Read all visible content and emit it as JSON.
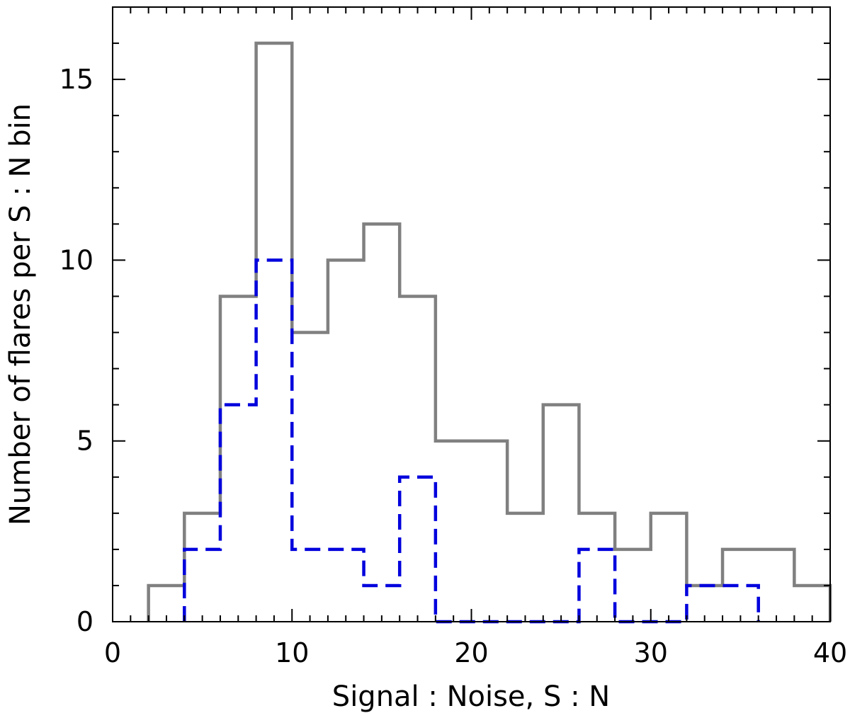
{
  "chart_data": {
    "type": "histogram",
    "xlabel": "Signal : Noise, S : N",
    "ylabel": "Number of flares per S : N bin",
    "xlim": [
      0,
      40
    ],
    "ylim": [
      0,
      17
    ],
    "x_ticks": [
      0,
      10,
      20,
      30,
      40
    ],
    "x_minor_step": 1,
    "y_ticks": [
      0,
      5,
      10,
      15
    ],
    "y_minor_step": 1,
    "x_tick_labels": [
      "0",
      "10",
      "20",
      "30",
      "40"
    ],
    "y_tick_labels": [
      "0",
      "5",
      "10",
      "15"
    ],
    "grid": false,
    "series": [
      {
        "style": "solid",
        "color": "#808080",
        "bin_edges": [
          2,
          4,
          6,
          8,
          10,
          12,
          14,
          16,
          18,
          20,
          22,
          24,
          26,
          28,
          30,
          32,
          34,
          36,
          38,
          40
        ],
        "values": [
          1,
          3,
          9,
          16,
          8,
          10,
          11,
          9,
          5,
          5,
          3,
          6,
          3,
          2,
          3,
          1,
          2,
          2,
          1
        ]
      },
      {
        "style": "dashed",
        "color": "#0000dd",
        "bin_edges": [
          4,
          6,
          8,
          10,
          12,
          14,
          16,
          18,
          20,
          22,
          24,
          26,
          28,
          30,
          32,
          34,
          36
        ],
        "values": [
          2,
          6,
          10,
          2,
          2,
          1,
          4,
          0,
          0,
          0,
          0,
          2,
          0,
          0,
          1,
          1
        ]
      }
    ]
  }
}
